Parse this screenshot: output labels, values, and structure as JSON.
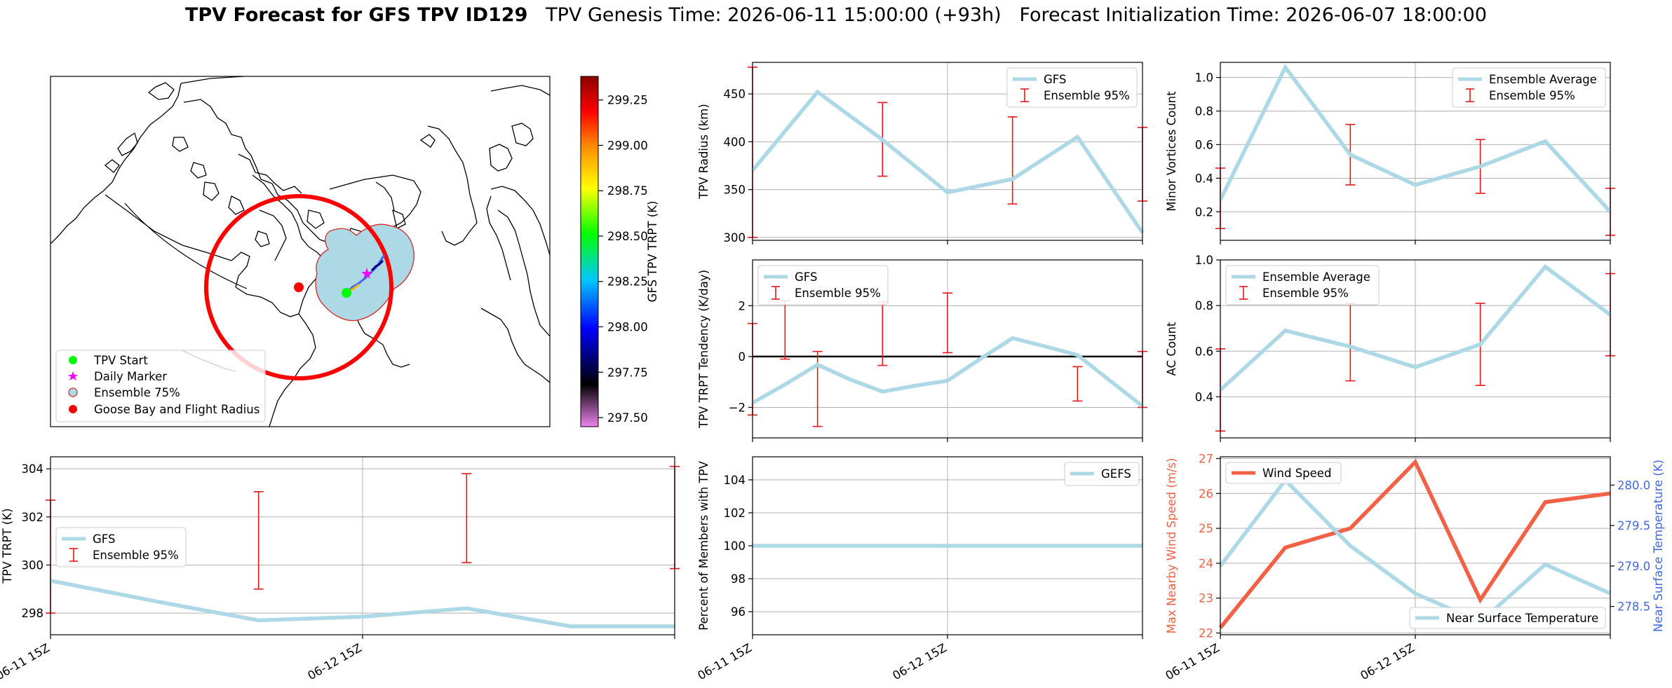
{
  "title": {
    "main": "TPV Forecast for GFS TPV ID129",
    "genesis": "TPV Genesis Time: 2026-06-11 15:00:00 (+93h)",
    "init": "Forecast Initialization Time: 2026-06-07 18:00:00"
  },
  "colors": {
    "series": "#add8e6",
    "error_bar": "#e8161a",
    "wind": "#f26146",
    "temp_axis": "#4169e1",
    "tpv_start": "#00ff00",
    "daily_marker": "#ff00ff",
    "goose_bay": "#ff0000"
  },
  "chart_data": [
    {
      "id": "map",
      "type": "map",
      "colorbar": {
        "label": "GFS TPV TRPT (K)",
        "range": [
          297.45,
          299.38
        ],
        "ticks": [
          "299.25",
          "299.00",
          "298.75",
          "298.50",
          "298.25",
          "298.00",
          "297.75",
          "297.50"
        ],
        "tick_values": [
          299.25,
          299.0,
          298.75,
          298.5,
          298.25,
          298.0,
          297.75,
          297.5
        ],
        "colormap": [
          "#ee82ee",
          "#000000",
          "#0000ff",
          "#00c8ff",
          "#00ff00",
          "#ffff00",
          "#ff8c00",
          "#ff0000",
          "#8b0000"
        ]
      },
      "legend": [
        {
          "label": "TPV Start",
          "marker": "circle"
        },
        {
          "label": "Daily Marker",
          "marker": "star"
        },
        {
          "label": "Ensemble 75%",
          "marker": "circle-ensemble"
        },
        {
          "label": "Goose Bay and Flight Radius",
          "marker": "circle-red"
        }
      ],
      "legend_placement": "lower-left"
    },
    {
      "id": "radius",
      "type": "line",
      "ylabel": "TPV Radius (km)",
      "ylim": [
        297,
        483
      ],
      "yticks": [
        300,
        350,
        400,
        450
      ],
      "x": [
        0,
        0.5,
        1,
        1.5,
        2,
        2.5,
        3
      ],
      "series": [
        {
          "name": "GFS",
          "values": [
            370,
            452,
            402,
            347,
            361,
            405,
            305
          ]
        }
      ],
      "error_bars": [
        {
          "x": 0,
          "low": 300,
          "high": 478
        },
        {
          "x": 1,
          "low": 364,
          "high": 441
        },
        {
          "x": 2,
          "low": 335,
          "high": 426
        },
        {
          "x": 3,
          "low": 338,
          "high": 415
        }
      ],
      "legend": [
        "GFS",
        "Ensemble 95%"
      ],
      "legend_placement": "upper-right",
      "grid": true
    },
    {
      "id": "minor",
      "type": "line",
      "ylabel": "Minor Vortices Count",
      "ylim": [
        0.03,
        1.09
      ],
      "yticks": [
        0.2,
        0.4,
        0.6,
        0.8,
        1.0
      ],
      "ytick_labels": [
        "0.2",
        "0.4",
        "0.6",
        "0.8",
        "1.0"
      ],
      "x": [
        0,
        0.5,
        1,
        1.5,
        2,
        2.5,
        3
      ],
      "series": [
        {
          "name": "Ensemble Average",
          "values": [
            0.27,
            1.06,
            0.54,
            0.36,
            0.47,
            0.62,
            0.2
          ]
        }
      ],
      "error_bars": [
        {
          "x": 0,
          "low": 0.1,
          "high": 0.46
        },
        {
          "x": 1,
          "low": 0.36,
          "high": 0.72
        },
        {
          "x": 2,
          "low": 0.31,
          "high": 0.63
        },
        {
          "x": 3,
          "low": 0.06,
          "high": 0.34
        }
      ],
      "legend": [
        "Ensemble Average",
        "Ensemble 95%"
      ],
      "legend_placement": "upper-right",
      "grid": true
    },
    {
      "id": "tendency",
      "type": "line",
      "ylabel": "TPV TRPT Tendency (K/day)",
      "ylim": [
        -3.2,
        3.8
      ],
      "yticks": [
        -2,
        0,
        2
      ],
      "ytick_labels": [
        "−2",
        "0",
        "2"
      ],
      "x": [
        0,
        0.25,
        0.5,
        0.75,
        1,
        1.25,
        1.5,
        1.75,
        2,
        2.25,
        2.5,
        2.75,
        3
      ],
      "series": [
        {
          "name": "GFS",
          "values": [
            -1.82,
            -1.1,
            -0.32,
            -0.9,
            -1.38,
            -1.15,
            -0.95,
            -0.1,
            0.72,
            0.4,
            0.06,
            -0.95,
            -1.95
          ]
        }
      ],
      "error_bars": [
        {
          "x": 0,
          "low": -2.3,
          "high": 1.3
        },
        {
          "x": 0.25,
          "low": -0.1,
          "high": 2.2
        },
        {
          "x": 0.5,
          "low": -2.75,
          "high": 0.2
        },
        {
          "x": 1,
          "low": -0.35,
          "high": 2.15
        },
        {
          "x": 1.5,
          "low": 0.15,
          "high": 2.5
        },
        {
          "x": 2.5,
          "low": -1.75,
          "high": -0.4
        },
        {
          "x": 3,
          "low": -2.0,
          "high": 0.2
        }
      ],
      "hline": 0,
      "legend": [
        "GFS",
        "Ensemble 95%"
      ],
      "legend_placement": "upper-left",
      "grid": true
    },
    {
      "id": "ac",
      "type": "line",
      "ylabel": "AC Count",
      "ylim": [
        0.22,
        1.0
      ],
      "yticks": [
        0.4,
        0.6,
        0.8,
        1.0
      ],
      "ytick_labels": [
        "0.4",
        "0.6",
        "0.8",
        "1.0"
      ],
      "x": [
        0,
        0.5,
        1,
        1.5,
        2,
        2.5,
        3
      ],
      "series": [
        {
          "name": "Ensemble Average",
          "values": [
            0.43,
            0.69,
            0.62,
            0.53,
            0.63,
            0.97,
            0.76
          ]
        }
      ],
      "error_bars": [
        {
          "x": 0,
          "low": 0.25,
          "high": 0.61
        },
        {
          "x": 1,
          "low": 0.47,
          "high": 0.81
        },
        {
          "x": 2,
          "low": 0.45,
          "high": 0.81
        },
        {
          "x": 3,
          "low": 0.58,
          "high": 0.94
        }
      ],
      "legend": [
        "Ensemble Average",
        "Ensemble 95%"
      ],
      "legend_placement": "upper-left",
      "grid": true
    },
    {
      "id": "trpt",
      "type": "line",
      "ylabel": "TPV TRPT (K)",
      "ylim": [
        297.1,
        304.5
      ],
      "yticks": [
        298,
        300,
        302,
        304
      ],
      "x": [
        0,
        0.5,
        1,
        1.5,
        2,
        2.5,
        3
      ],
      "series": [
        {
          "name": "GFS",
          "values": [
            299.35,
            298.5,
            297.7,
            297.85,
            298.2,
            297.45,
            297.45
          ]
        }
      ],
      "error_bars": [
        {
          "x": 0,
          "low": 298.0,
          "high": 302.7
        },
        {
          "x": 1,
          "low": 299.0,
          "high": 303.05
        },
        {
          "x": 2,
          "low": 300.1,
          "high": 303.8
        },
        {
          "x": 3,
          "low": 299.85,
          "high": 304.1
        }
      ],
      "xticks": [
        "06-11 15Z",
        "06-12 15Z"
      ],
      "legend": [
        "GFS",
        "Ensemble 95%"
      ],
      "legend_placement": "center-left",
      "grid": true
    },
    {
      "id": "members",
      "type": "line",
      "ylabel": "Percent of Members with TPV",
      "ylim": [
        94.6,
        105.4
      ],
      "yticks": [
        96,
        98,
        100,
        102,
        104
      ],
      "x": [
        0,
        3
      ],
      "series": [
        {
          "name": "GEFS",
          "values": [
            100,
            100
          ]
        }
      ],
      "xticks": [
        "06-11 15Z",
        "06-12 15Z"
      ],
      "legend": [
        "GEFS"
      ],
      "legend_placement": "upper-right",
      "grid": true
    },
    {
      "id": "wind",
      "type": "line",
      "ylabel": "Max Nearby Wind Speed (m/s)",
      "ylabel_right": "Near Surface Temperature (K)",
      "ylim": [
        21.95,
        27.05
      ],
      "yticks": [
        22,
        23,
        24,
        25,
        26,
        27
      ],
      "ylim_right": [
        278.15,
        280.35
      ],
      "yticks_right": [
        278.5,
        279.0,
        279.5,
        280.0
      ],
      "ytick_labels_right": [
        "278.5",
        "279.0",
        "279.5",
        "280.0"
      ],
      "x": [
        0,
        0.5,
        1,
        1.5,
        2,
        2.5,
        3
      ],
      "series": [
        {
          "name": "Wind Speed",
          "values": [
            22.15,
            24.45,
            25.0,
            26.9,
            22.95,
            25.75,
            26.0
          ],
          "axis": "left"
        },
        {
          "name": "Near Surface Temperature",
          "values": [
            279.0,
            280.06,
            279.25,
            278.66,
            278.31,
            279.02,
            278.66
          ],
          "axis": "right"
        }
      ],
      "xticks": [
        "06-11 15Z",
        "06-12 15Z"
      ],
      "legend": [
        "Wind Speed",
        "Near Surface Temperature"
      ],
      "legend_placement": "upper-left / lower-right",
      "grid": true
    }
  ]
}
